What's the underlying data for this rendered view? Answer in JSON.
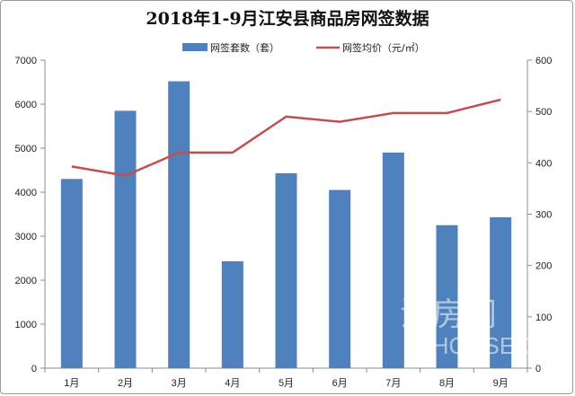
{
  "chart_data": {
    "type": "bar",
    "title": "2018年1-9月江安县商品房网签数据",
    "categories": [
      "1月",
      "2月",
      "3月",
      "4月",
      "5月",
      "6月",
      "7月",
      "8月",
      "9月"
    ],
    "series": [
      {
        "name": "网签套数（套）",
        "type": "bar",
        "axis": "left",
        "color": "#4f81bd",
        "values": [
          4300,
          5850,
          6520,
          2430,
          4430,
          4050,
          4900,
          3250,
          3430
        ]
      },
      {
        "name": "网签均价（元/㎡）",
        "type": "line",
        "axis": "right",
        "color": "#c0504d",
        "values": [
          393,
          375,
          420,
          420,
          490,
          480,
          497,
          497,
          523
        ]
      }
    ],
    "y_left": {
      "min": 0,
      "max": 7000,
      "ticks": [
        0,
        1000,
        2000,
        3000,
        4000,
        5000,
        6000,
        7000
      ]
    },
    "y_right": {
      "min": 0,
      "max": 600,
      "ticks": [
        0,
        100,
        200,
        300,
        400,
        500,
        600
      ]
    },
    "legend_position": "top-center",
    "grid": false
  },
  "watermark": {
    "line1": "江房网",
    "line2": "CJHOUSE.CO"
  }
}
